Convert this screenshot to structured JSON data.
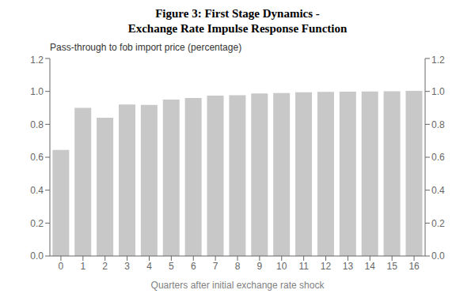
{
  "chart_data": {
    "type": "bar",
    "title": "Figure 3: First Stage Dynamics -",
    "subtitle": "Exchange Rate Impulse Response Function",
    "ylabel": "Pass-through to fob import price (percentage)",
    "xlabel": "Quarters after initial exchange rate shock",
    "categories": [
      0,
      1,
      2,
      3,
      4,
      5,
      6,
      7,
      8,
      9,
      10,
      11,
      12,
      13,
      14,
      15,
      16
    ],
    "values": [
      0.645,
      0.9,
      0.84,
      0.92,
      0.918,
      0.95,
      0.96,
      0.975,
      0.977,
      0.988,
      0.99,
      0.995,
      0.997,
      0.998,
      1.0,
      1.001,
      1.003
    ],
    "color": "#c8c8c8",
    "ylim": [
      0,
      1.2
    ],
    "yticks": [
      {
        "value": 0,
        "label": "0.0"
      },
      0.2,
      0.4,
      0.6,
      0.8,
      {
        "value": 1.0,
        "label": "1.0"
      },
      1.2
    ],
    "y2lim": [
      0,
      1.2
    ],
    "y2ticks": [
      {
        "value": 0,
        "label": "0.0"
      },
      0.2,
      0.4,
      0.6,
      0.8,
      {
        "value": 1.0,
        "label": "1.0"
      },
      1.2
    ],
    "grid": false
  }
}
